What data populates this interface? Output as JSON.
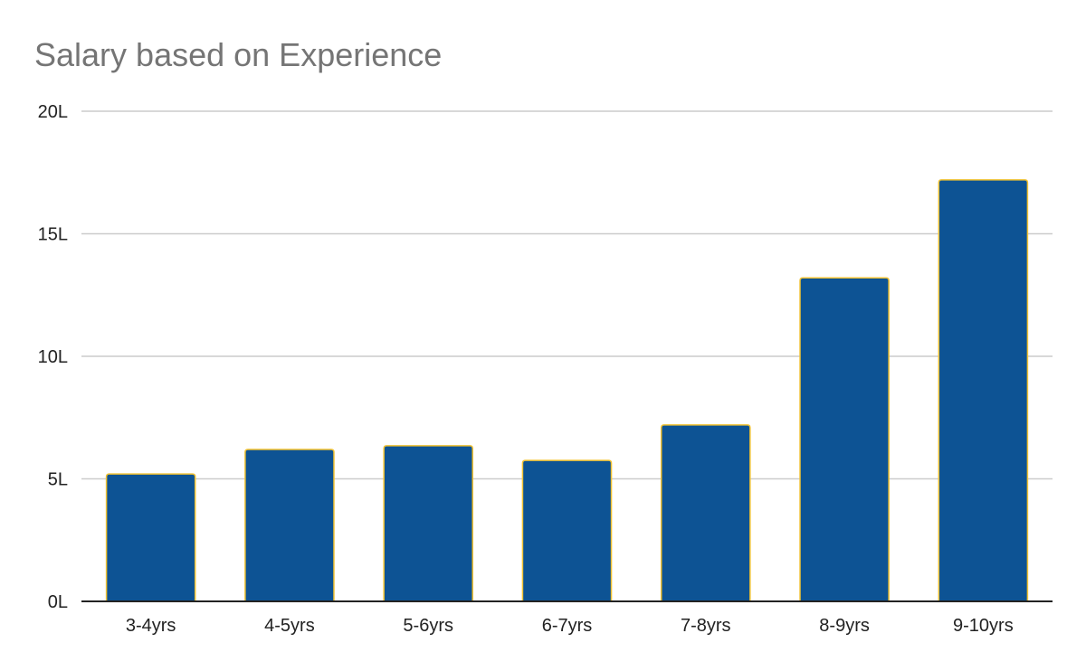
{
  "chart_data": {
    "type": "bar",
    "title": "Salary based on Experience",
    "xlabel": "",
    "ylabel": "",
    "categories": [
      "3-4yrs",
      "4-5yrs",
      "5-6yrs",
      "6-7yrs",
      "7-8yrs",
      "8-9yrs",
      "9-10yrs"
    ],
    "values": [
      5.2,
      6.2,
      6.35,
      5.75,
      7.2,
      13.2,
      17.2
    ],
    "ylim": [
      0,
      20
    ],
    "y_ticks": [
      0,
      5,
      10,
      15,
      20
    ],
    "y_tick_labels": [
      "0L",
      "5L",
      "10L",
      "15L",
      "20L"
    ],
    "grid": true,
    "legend": "none",
    "colors": {
      "bar_fill": "#0d5394",
      "bar_stroke": "#f1c232",
      "grid": "#cccccc",
      "axis": "#222222",
      "title": "#757575"
    }
  }
}
